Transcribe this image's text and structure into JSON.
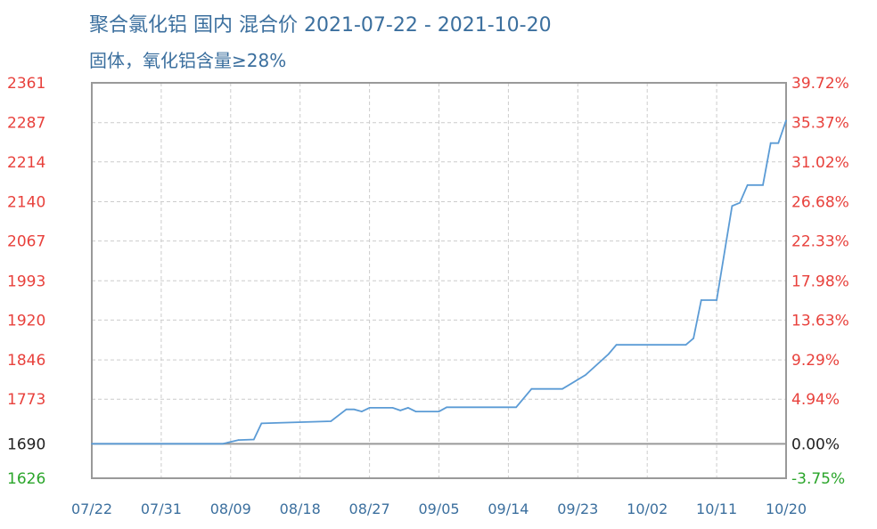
{
  "chart_data": {
    "type": "line",
    "title": "聚合氯化铝 国内 混合价 2021-07-22 - 2021-10-20",
    "subtitle": "固体，氧化铝含量≥28%",
    "year": 2021,
    "ylim": [
      1626,
      2361
    ],
    "y_ticks": [
      "2361",
      "2287",
      "2214",
      "2140",
      "2067",
      "1993",
      "1920",
      "1846",
      "1773",
      "1690",
      "1626"
    ],
    "y_ticks_right": [
      "39.72%",
      "35.37%",
      "31.02%",
      "26.68%",
      "22.33%",
      "17.98%",
      "13.63%",
      "9.29%",
      "4.94%",
      "0.00%",
      "-3.75%"
    ],
    "x_ticks": [
      "07/22",
      "07/31",
      "08/09",
      "08/18",
      "08/27",
      "09/05",
      "09/14",
      "09/23",
      "10/02",
      "10/11",
      "10/20"
    ],
    "grid": true,
    "colors": {
      "line": "#5b9bd5",
      "up": "#e8413c",
      "base": "#222222",
      "down": "#2aa52a",
      "axis_text": "#3b6f9e"
    },
    "series": [
      {
        "x": [
          "07/22",
          "08/08",
          "08/10",
          "08/12",
          "08/13",
          "08/22",
          "08/24",
          "08/25",
          "08/26",
          "08/27",
          "08/30",
          "08/31",
          "09/01",
          "09/02",
          "09/05",
          "09/06",
          "09/15",
          "09/17",
          "09/21",
          "09/24",
          "09/27",
          "09/28",
          "10/07",
          "10/08",
          "10/09",
          "10/11",
          "10/13",
          "10/14",
          "10/15",
          "10/17",
          "10/18",
          "10/19",
          "10/20"
        ],
        "y": [
          1690,
          1690,
          1697,
          1698,
          1728,
          1732,
          1754,
          1754,
          1750,
          1757,
          1757,
          1752,
          1757,
          1750,
          1750,
          1758,
          1758,
          1792,
          1792,
          1818,
          1857,
          1874,
          1874,
          1886,
          1957,
          1957,
          2132,
          2138,
          2171,
          2171,
          2249,
          2249,
          2291
        ]
      }
    ]
  }
}
